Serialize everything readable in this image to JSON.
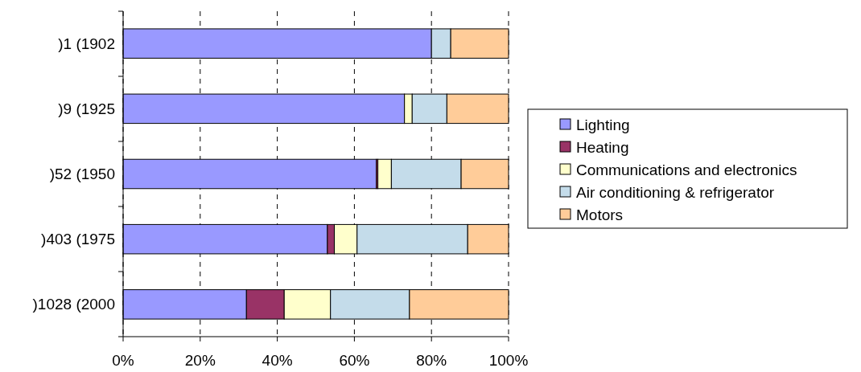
{
  "chart_data": {
    "type": "bar",
    "orientation": "horizontal",
    "stacked": true,
    "categories": [
      ")1 (1902",
      ")9 (1925",
      ")52 (1950",
      ")403 (1975",
      ")1028 (2000"
    ],
    "series": [
      {
        "name": "Lighting",
        "color": "#9999ff",
        "values": [
          80,
          73,
          65.7,
          53,
          32
        ]
      },
      {
        "name": "Heating",
        "color": "#993366",
        "values": [
          0,
          0,
          0.4,
          1.8,
          9.8
        ]
      },
      {
        "name": "Communications and electronics",
        "color": "#ffffcc",
        "values": [
          0,
          2,
          3.5,
          5.9,
          12
        ]
      },
      {
        "name": "Air conditioning & refrigerator",
        "color": "#c4dcea",
        "values": [
          5,
          9,
          18.1,
          28.7,
          20.5
        ]
      },
      {
        "name": "Motors",
        "color": "#ffcc99",
        "values": [
          15,
          16,
          12.3,
          10.6,
          25.7
        ]
      }
    ],
    "xlim": [
      0,
      100
    ],
    "xticks": [
      {
        "value": 0,
        "label": "0%"
      },
      {
        "value": 20,
        "label": "20%"
      },
      {
        "value": 40,
        "label": "40%"
      },
      {
        "value": 60,
        "label": "60%"
      },
      {
        "value": 80,
        "label": "80%"
      },
      {
        "value": 100,
        "label": "100%"
      }
    ],
    "grid": "x",
    "legend": "right"
  }
}
